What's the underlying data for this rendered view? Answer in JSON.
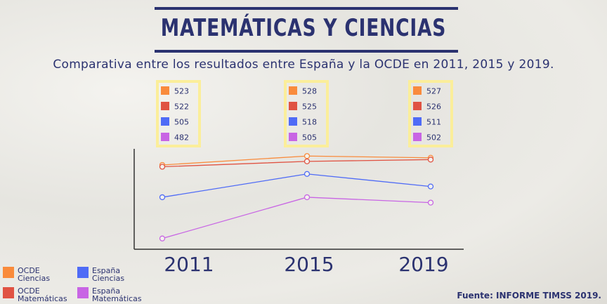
{
  "title": "MATEMÁTICAS Y CIENCIAS",
  "subtitle": "Comparativa entre los resultados entre España y la OCDE en 2011, 2015 y 2019.",
  "source": "Fuente: INFORME TIMSS 2019.",
  "chart_data": {
    "type": "line",
    "categories": [
      "2011",
      "2015",
      "2019"
    ],
    "ylim": [
      476,
      532
    ],
    "grid": false,
    "legend_placement": "bottom-left",
    "series": [
      {
        "name": "OCDE Ciencias",
        "name_lines": [
          "OCDE",
          "Ciencias"
        ],
        "color": "#f98b3c",
        "values": [
          523,
          528,
          527
        ]
      },
      {
        "name": "OCDE Matemáticas",
        "name_lines": [
          "OCDE",
          "Matemáticas"
        ],
        "color": "#e05343",
        "values": [
          522,
          525,
          526
        ]
      },
      {
        "name": "España Ciencias",
        "name_lines": [
          "España",
          "Ciencias"
        ],
        "color": "#4f6bf6",
        "values": [
          505,
          518,
          511
        ]
      },
      {
        "name": "España Matemáticas",
        "name_lines": [
          "España",
          "Matemáticas"
        ],
        "color": "#c865e4",
        "values": [
          482,
          505,
          502
        ]
      }
    ],
    "label_box_color": "#fbee9a"
  }
}
